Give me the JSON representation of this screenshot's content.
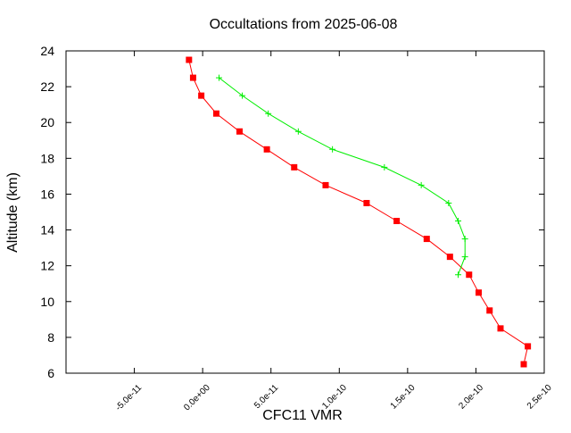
{
  "chart_data": {
    "type": "line",
    "title": "Occultations from 2025-06-08",
    "xlabel": "CFC11 VMR",
    "ylabel": "Altitude (km)",
    "xlim": [
      -1e-10,
      2.5e-10
    ],
    "ylim": [
      6,
      24
    ],
    "x_ticks": [
      -1e-10,
      -5e-11,
      0,
      5e-11,
      1e-10,
      1.5e-10,
      2e-10,
      2.5e-10
    ],
    "x_tick_labels": [
      "",
      "-5.0e-11",
      "0.0e+00",
      "5.0e-11",
      "1.0e-10",
      "1.5e-10",
      "2.0e-10",
      "2.5e-10"
    ],
    "y_ticks": [
      6,
      8,
      10,
      12,
      14,
      16,
      18,
      20,
      22,
      24
    ],
    "y_tick_labels": [
      "6",
      "8",
      "10",
      "12",
      "14",
      "16",
      "18",
      "20",
      "22",
      "24"
    ],
    "grid": false,
    "legend": "none",
    "series": [
      {
        "color": "#ff0000",
        "marker": "square",
        "x": [
          -1e-11,
          -7e-12,
          -1e-12,
          1e-11,
          2.7e-11,
          4.7e-11,
          6.7e-11,
          9e-11,
          1.2e-10,
          1.42e-10,
          1.64e-10,
          1.81e-10,
          1.95e-10,
          2.02e-10,
          2.1e-10,
          2.18e-10,
          2.38e-10,
          2.35e-10
        ],
        "y": [
          23.5,
          22.5,
          21.5,
          20.5,
          19.5,
          18.5,
          17.5,
          16.5,
          15.5,
          14.5,
          13.5,
          12.5,
          11.5,
          10.5,
          9.5,
          8.5,
          7.5,
          6.5
        ]
      },
      {
        "color": "#00ee00",
        "marker": "plus",
        "x": [
          1.2e-11,
          2.9e-11,
          4.8e-11,
          7e-11,
          9.5e-11,
          1.33e-10,
          1.6e-10,
          1.8e-10,
          1.87e-10,
          1.92e-10,
          1.92e-10,
          1.87e-10
        ],
        "y": [
          22.5,
          21.5,
          20.5,
          19.5,
          18.5,
          17.5,
          16.5,
          15.5,
          14.5,
          13.5,
          12.5,
          11.5
        ]
      }
    ]
  }
}
